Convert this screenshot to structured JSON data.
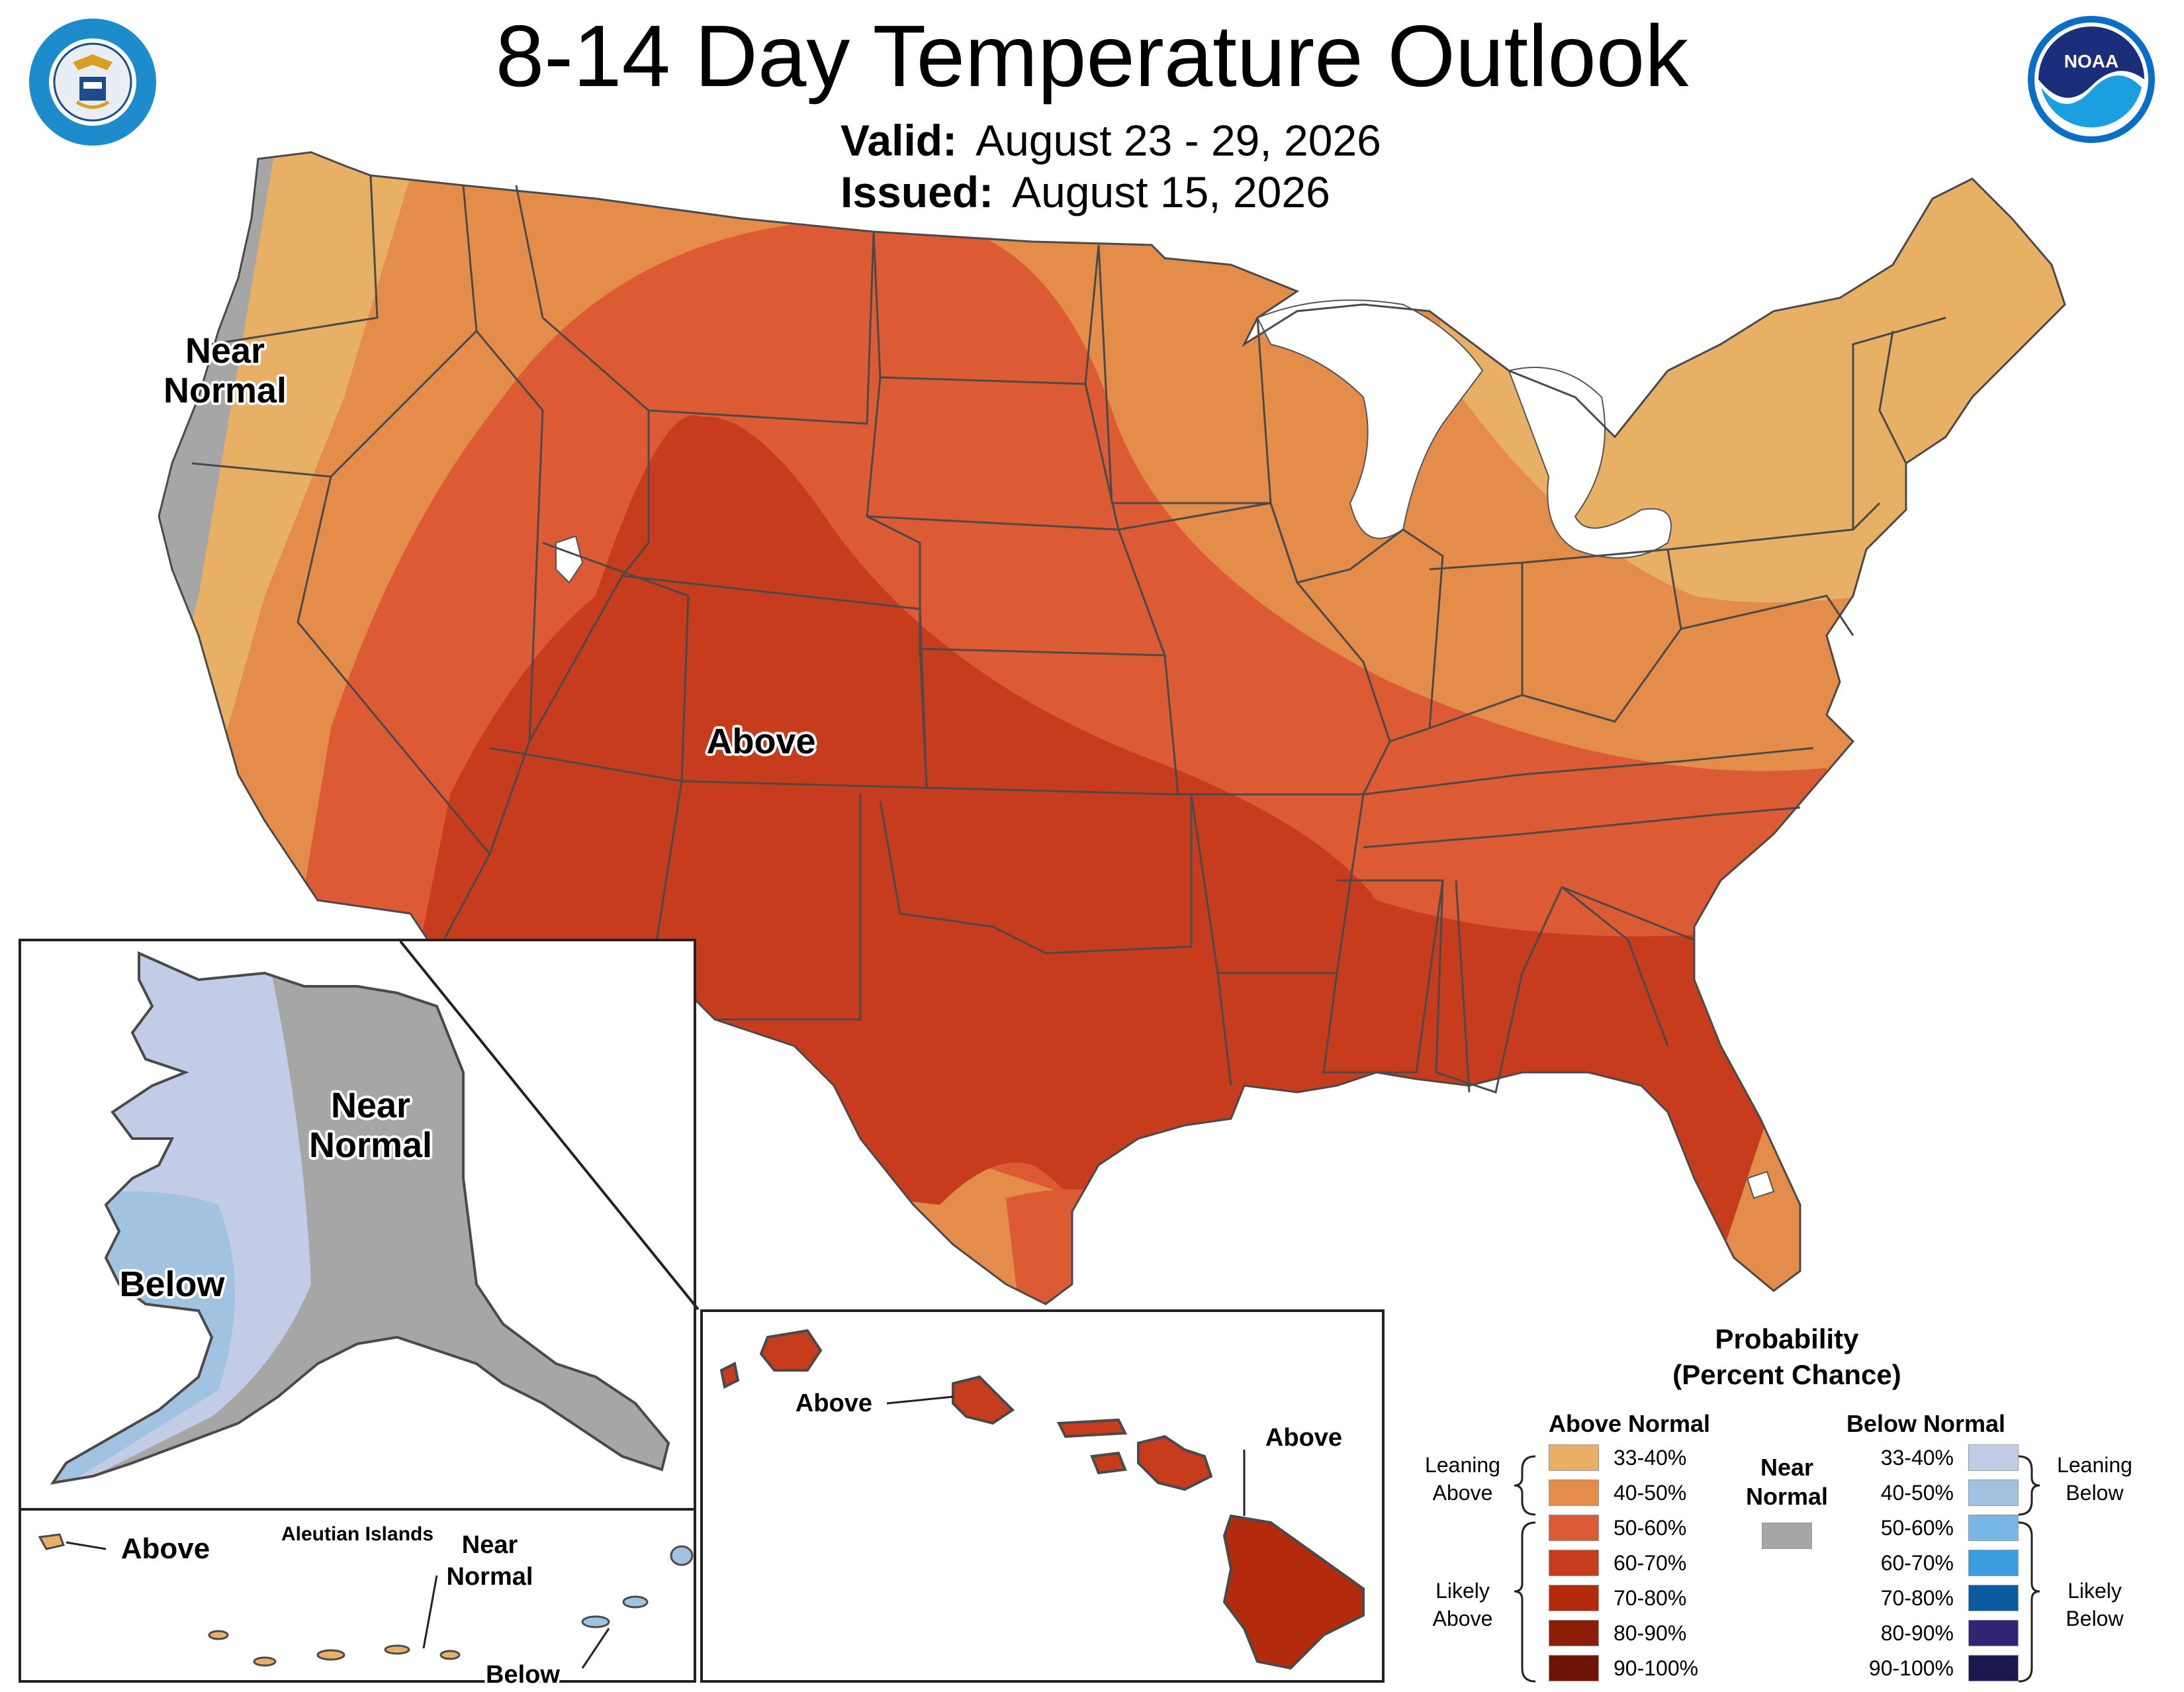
{
  "header": {
    "title": "8-14 Day Temperature Outlook",
    "valid_label": "Valid:",
    "valid_value": "August 23 - 29, 2026",
    "issued_label": "Issued:",
    "issued_value": "August 15, 2026"
  },
  "logos": {
    "commerce_name": "department-of-commerce-seal",
    "noaa_text": "NOAA"
  },
  "map_labels": {
    "conus_near_normal": "Near Normal",
    "conus_above": "Above",
    "alaska_near_normal": "Near Normal",
    "alaska_below": "Below",
    "aleutian_title": "Aleutian Islands",
    "aleutian_above": "Above",
    "aleutian_near_normal": "Near Normal",
    "aleutian_below": "Below",
    "hawaii_above_west": "Above",
    "hawaii_above_east": "Above"
  },
  "legend": {
    "title_line1": "Probability",
    "title_line2": "(Percent Chance)",
    "above_header": "Above Normal",
    "below_header": "Below Normal",
    "near_header_line1": "Near",
    "near_header_line2": "Normal",
    "near_color": "#a6a6a6",
    "leaning_above_1": "Leaning",
    "leaning_above_2": "Above",
    "likely_above_1": "Likely",
    "likely_above_2": "Above",
    "leaning_below_1": "Leaning",
    "leaning_below_2": "Below",
    "likely_below_1": "Likely",
    "likely_below_2": "Below",
    "above": [
      {
        "label": "33-40%",
        "color": "#e8b064"
      },
      {
        "label": "40-50%",
        "color": "#e48c4a"
      },
      {
        "label": "50-60%",
        "color": "#dc5a34"
      },
      {
        "label": "60-70%",
        "color": "#c83c1e"
      },
      {
        "label": "70-80%",
        "color": "#b42a0c"
      },
      {
        "label": "80-90%",
        "color": "#8c1e08"
      },
      {
        "label": "90-100%",
        "color": "#6e1404"
      }
    ],
    "below": [
      {
        "label": "33-40%",
        "color": "#c2cce6"
      },
      {
        "label": "40-50%",
        "color": "#a2c2e2"
      },
      {
        "label": "50-60%",
        "color": "#78b6e6"
      },
      {
        "label": "60-70%",
        "color": "#3c9ce0"
      },
      {
        "label": "70-80%",
        "color": "#0a5aa0"
      },
      {
        "label": "80-90%",
        "color": "#302474"
      },
      {
        "label": "90-100%",
        "color": "#1c1850"
      }
    ]
  }
}
